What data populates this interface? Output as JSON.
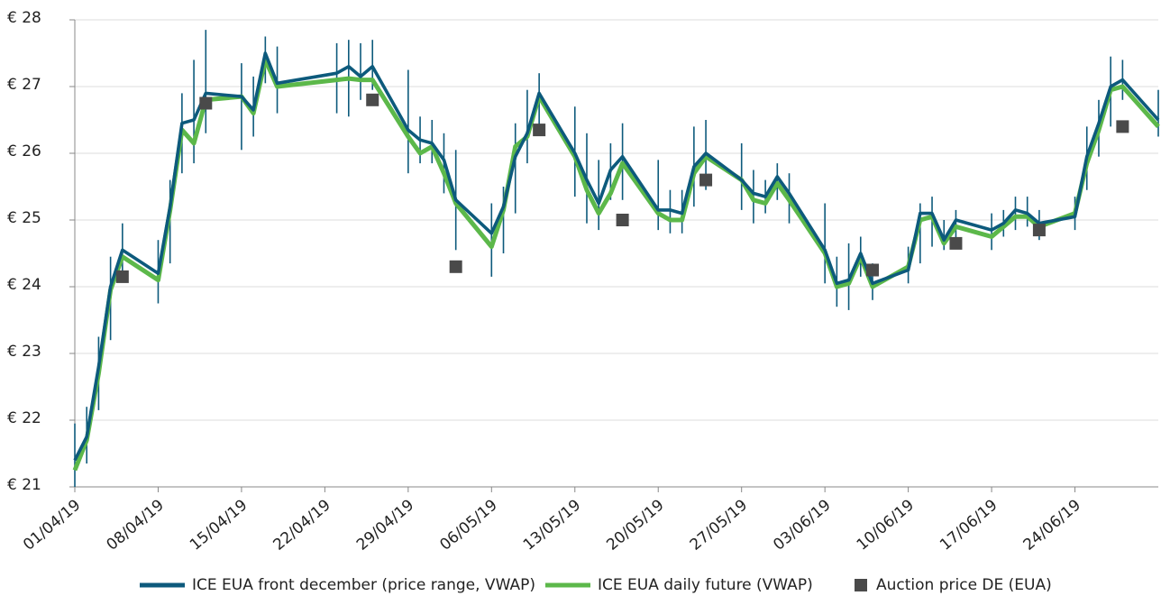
{
  "chart_data": {
    "type": "line",
    "x": [
      "2019-04-01",
      "2019-04-02",
      "2019-04-03",
      "2019-04-04",
      "2019-04-05",
      "2019-04-08",
      "2019-04-09",
      "2019-04-10",
      "2019-04-11",
      "2019-04-12",
      "2019-04-15",
      "2019-04-16",
      "2019-04-17",
      "2019-04-18",
      "2019-04-23",
      "2019-04-24",
      "2019-04-25",
      "2019-04-26",
      "2019-04-29",
      "2019-04-30",
      "2019-05-01",
      "2019-05-02",
      "2019-05-03",
      "2019-05-06",
      "2019-05-07",
      "2019-05-08",
      "2019-05-09",
      "2019-05-10",
      "2019-05-13",
      "2019-05-14",
      "2019-05-15",
      "2019-05-16",
      "2019-05-17",
      "2019-05-20",
      "2019-05-21",
      "2019-05-22",
      "2019-05-23",
      "2019-05-24",
      "2019-05-27",
      "2019-05-28",
      "2019-05-29",
      "2019-05-30",
      "2019-05-31",
      "2019-06-03",
      "2019-06-04",
      "2019-06-05",
      "2019-06-06",
      "2019-06-07",
      "2019-06-10",
      "2019-06-11",
      "2019-06-12",
      "2019-06-13",
      "2019-06-14",
      "2019-06-17",
      "2019-06-18",
      "2019-06-19",
      "2019-06-20",
      "2019-06-21",
      "2019-06-24",
      "2019-06-25",
      "2019-06-26",
      "2019-06-27",
      "2019-06-28",
      "2019-07-01"
    ],
    "xlim": [
      "2019-04-01",
      "2019-07-01"
    ],
    "xticks": [
      {
        "value": "2019-04-01",
        "label": "01/04/19"
      },
      {
        "value": "2019-04-08",
        "label": "08/04/19"
      },
      {
        "value": "2019-04-15",
        "label": "15/04/19"
      },
      {
        "value": "2019-04-22",
        "label": "22/04/19"
      },
      {
        "value": "2019-04-29",
        "label": "29/04/19"
      },
      {
        "value": "2019-05-06",
        "label": "06/05/19"
      },
      {
        "value": "2019-05-13",
        "label": "13/05/19"
      },
      {
        "value": "2019-05-20",
        "label": "20/05/19"
      },
      {
        "value": "2019-05-27",
        "label": "27/05/19"
      },
      {
        "value": "2019-06-03",
        "label": "03/06/19"
      },
      {
        "value": "2019-06-10",
        "label": "10/06/19"
      },
      {
        "value": "2019-06-17",
        "label": "17/06/19"
      },
      {
        "value": "2019-06-24",
        "label": "24/06/19"
      }
    ],
    "ylim": [
      21,
      28
    ],
    "yticks": [
      {
        "value": 21,
        "label": "€ 21"
      },
      {
        "value": 22,
        "label": "€ 22"
      },
      {
        "value": 23,
        "label": "€ 23"
      },
      {
        "value": 24,
        "label": "€ 24"
      },
      {
        "value": 25,
        "label": "€ 25"
      },
      {
        "value": 26,
        "label": "€ 26"
      },
      {
        "value": 27,
        "label": "€ 27"
      },
      {
        "value": 28,
        "label": "€ 28"
      }
    ],
    "grid": true,
    "series": [
      {
        "name": "ICE EUA front december (price range, VWAP)",
        "color": "#0d5a7c",
        "values": [
          21.4,
          21.75,
          22.8,
          24.0,
          24.55,
          24.2,
          25.2,
          26.45,
          26.5,
          26.9,
          26.85,
          26.65,
          27.5,
          27.05,
          27.2,
          27.3,
          27.15,
          27.3,
          26.35,
          26.2,
          26.15,
          25.9,
          25.3,
          24.8,
          25.2,
          25.95,
          26.3,
          26.9,
          26.0,
          25.6,
          25.25,
          25.75,
          25.95,
          25.15,
          25.15,
          25.1,
          25.8,
          26.0,
          25.6,
          25.4,
          25.35,
          25.65,
          25.4,
          24.55,
          24.05,
          24.1,
          24.5,
          24.05,
          24.25,
          25.1,
          25.1,
          24.7,
          25.0,
          24.85,
          24.95,
          25.15,
          25.1,
          24.95,
          25.05,
          25.95,
          26.45,
          27.0,
          27.1,
          26.5
        ],
        "low": [
          21.0,
          21.35,
          22.15,
          23.2,
          24.1,
          23.75,
          24.35,
          25.7,
          25.85,
          26.3,
          26.05,
          26.25,
          27.05,
          26.6,
          26.6,
          26.55,
          26.8,
          26.95,
          25.7,
          25.85,
          25.85,
          25.4,
          24.55,
          24.15,
          24.5,
          25.1,
          25.85,
          26.4,
          25.35,
          24.95,
          24.85,
          25.3,
          25.3,
          24.85,
          24.8,
          24.8,
          25.2,
          25.45,
          25.15,
          24.95,
          25.1,
          25.3,
          24.95,
          24.05,
          23.7,
          23.65,
          24.15,
          23.8,
          24.05,
          24.35,
          24.6,
          24.55,
          24.7,
          24.55,
          24.75,
          24.85,
          24.9,
          24.7,
          24.85,
          25.45,
          25.95,
          26.4,
          26.8,
          26.25
        ],
        "high": [
          21.95,
          22.2,
          23.25,
          24.45,
          24.95,
          24.7,
          25.6,
          26.9,
          27.4,
          27.85,
          27.35,
          27.15,
          27.75,
          27.6,
          27.65,
          27.7,
          27.65,
          27.7,
          27.25,
          26.55,
          26.5,
          26.3,
          26.05,
          25.25,
          25.5,
          26.45,
          26.95,
          27.2,
          26.7,
          26.3,
          25.9,
          26.15,
          26.45,
          25.9,
          25.45,
          25.45,
          26.4,
          26.5,
          26.15,
          25.75,
          25.6,
          25.85,
          25.7,
          25.25,
          24.45,
          24.65,
          24.75,
          24.35,
          24.6,
          25.25,
          25.35,
          25.0,
          25.15,
          25.1,
          25.15,
          25.35,
          25.35,
          25.15,
          25.35,
          26.4,
          26.8,
          27.45,
          27.4,
          26.95
        ]
      },
      {
        "name": "ICE EUA daily future (VWAP)",
        "color": "#5cb84a",
        "values": [
          21.25,
          21.7,
          22.7,
          23.95,
          24.45,
          24.1,
          25.15,
          26.35,
          26.15,
          26.8,
          26.85,
          26.6,
          27.4,
          27.0,
          27.1,
          27.12,
          27.1,
          27.1,
          26.25,
          26.0,
          26.1,
          25.7,
          25.25,
          24.6,
          25.15,
          26.1,
          26.25,
          26.85,
          25.95,
          25.45,
          25.1,
          25.4,
          25.85,
          25.1,
          25.0,
          25.0,
          25.7,
          25.95,
          25.6,
          25.3,
          25.25,
          25.55,
          25.3,
          24.5,
          24.0,
          24.05,
          24.45,
          24.0,
          24.3,
          25.0,
          25.05,
          24.65,
          24.9,
          24.75,
          24.9,
          25.05,
          25.05,
          24.9,
          25.1,
          25.85,
          26.35,
          26.95,
          27.0,
          26.4
        ]
      },
      {
        "name": "Auction price DE (EUA)",
        "color": "#4a4a4a",
        "marker": "square",
        "x": [
          "2019-04-05",
          "2019-04-12",
          "2019-04-26",
          "2019-05-03",
          "2019-05-10",
          "2019-05-17",
          "2019-05-24",
          "2019-06-07",
          "2019-06-14",
          "2019-06-21",
          "2019-06-28"
        ],
        "values": [
          24.15,
          26.75,
          26.8,
          24.3,
          26.35,
          25.0,
          25.6,
          24.25,
          24.65,
          24.85,
          26.4
        ]
      }
    ]
  }
}
